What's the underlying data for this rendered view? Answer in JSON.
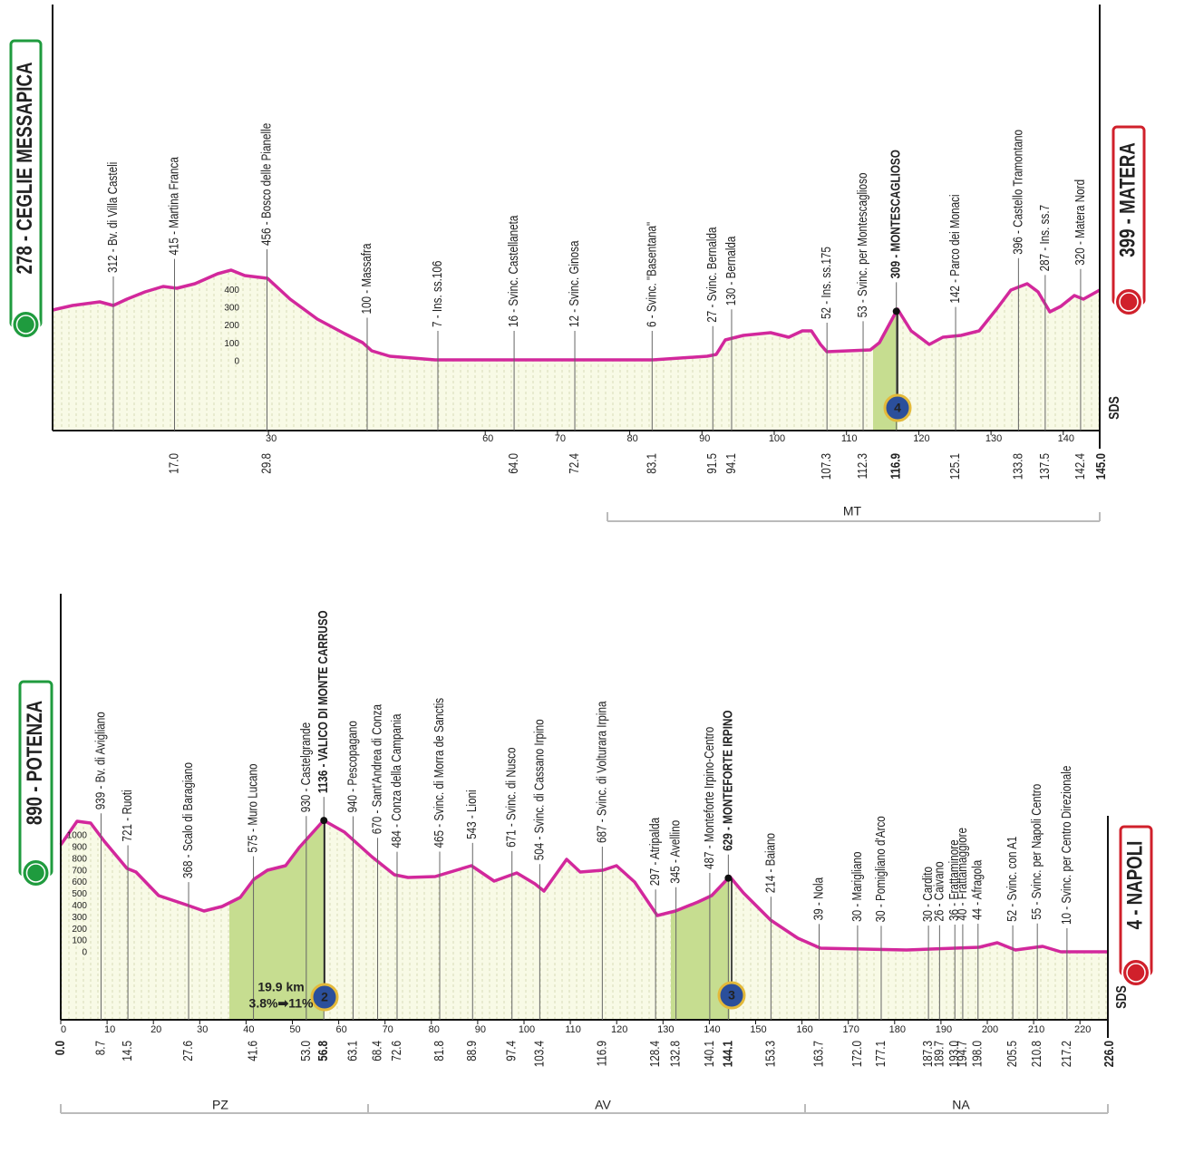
{
  "profiles": [
    {
      "start": "278 - CEGLIE MESSAPICA",
      "finish": "399 - MATERA",
      "finish_km": "145.0",
      "waypoints": [
        {
          "label": "312 - Bv. di Villa Casteli"
        },
        {
          "label": "415 - Martina Franca",
          "km": "17.0"
        },
        {
          "label": "456 - Bosco delle Pianelle",
          "km": "29.8"
        },
        {
          "label": "100 - Massafra"
        },
        {
          "label": "7 - Ins. ss.106"
        },
        {
          "label": "16 - Svinc. Castellaneta",
          "km": "64.0"
        },
        {
          "label": "12 - Svinc. Ginosa",
          "km": "72.4"
        },
        {
          "label": "6 - Svinc. \"Basentana\"",
          "km": "83.1"
        },
        {
          "label": "27 - Svinc. Bernalda",
          "km": "91.5"
        },
        {
          "label": "130 - Bernalda",
          "km": "94.1"
        },
        {
          "label": "52 - Ins. ss.175",
          "km": "107.3"
        },
        {
          "label": "53 - Svinc. per Montescaglioso",
          "km": "112.3"
        },
        {
          "label": "309 - MONTESCAGLIOSO",
          "km": "116.9",
          "summit": true
        },
        {
          "label": "142 - Parco dei Monaci",
          "km": "125.1"
        },
        {
          "label": "396 - Castello Tramontano",
          "km": "133.8"
        },
        {
          "label": "287 - Ins. ss.7",
          "km": "137.5"
        },
        {
          "label": "320 - Matera Nord",
          "km": "142.4"
        }
      ],
      "km_ticks": [
        30,
        60,
        70,
        80,
        90,
        100,
        110,
        120,
        130,
        140
      ],
      "alt_ticks": [
        400,
        300,
        200,
        100,
        0
      ],
      "provinces": [
        "MT"
      ],
      "climbs": [
        {
          "number": "4"
        }
      ],
      "watermark": "SDS"
    },
    {
      "start": "890 - POTENZA",
      "finish": "4 - NAPOLI",
      "start_km": "0.0",
      "finish_km": "226.0",
      "waypoints": [
        {
          "label": "939 - Bv. di Avigliano",
          "km": "8.7"
        },
        {
          "label": "721 - Ruoti",
          "km": "14.5"
        },
        {
          "label": "368 - Scalo di Baragiano",
          "km": "27.6"
        },
        {
          "label": "575 - Muro Lucano",
          "km": "41.6"
        },
        {
          "label": "930 - Castelgrande",
          "km": "53.0"
        },
        {
          "label": "1136 - VALICO DI MONTE CARRUSO",
          "km": "56.8",
          "summit": true
        },
        {
          "label": "940 - Pescopagano",
          "km": "63.1"
        },
        {
          "label": "670 - Sant'Andrea di Conza",
          "km": "68.4"
        },
        {
          "label": "484 - Conza della Campania",
          "km": "72.6"
        },
        {
          "label": "465 - Svinc. di Morra de Sanctis",
          "km": "81.8"
        },
        {
          "label": "543 - Lioni",
          "km": "88.9"
        },
        {
          "label": "671 - Svinc. di Nusco",
          "km": "97.4"
        },
        {
          "label": "504 - Svinc. di Cassano Irpino",
          "km": "103.4"
        },
        {
          "label": "687 - Svinc. di Volturara Irpina",
          "km": "116.9"
        },
        {
          "label": "297 - Atripalda",
          "km": "128.4"
        },
        {
          "label": "345 - Avellino",
          "km": "132.8"
        },
        {
          "label": "487 - Monteforte Irpino-Centro",
          "km": "140.1"
        },
        {
          "label": "629 - MONTEFORTE IRPINO",
          "km": "144.1",
          "summit": true
        },
        {
          "label": "214 - Baiano",
          "km": "153.3"
        },
        {
          "label": "39 - Nola",
          "km": "163.7"
        },
        {
          "label": "30 - Marigliano",
          "km": "172.0"
        },
        {
          "label": "30 - Pomigliano d'Arco",
          "km": "177.1"
        },
        {
          "label": "30 - Cardito",
          "km": "187.3"
        },
        {
          "label": "26 - Caivano",
          "km": "189.7"
        },
        {
          "label": "36 - Frattaminore",
          "km": "193.0"
        },
        {
          "label": "40 - Frattamaggiore",
          "km": "194.7"
        },
        {
          "label": "44 - Afragola",
          "km": "198.0"
        },
        {
          "label": "52 - Svinc. con A1",
          "km": "205.5"
        },
        {
          "label": "55 - Svinc. per Napoli Centro",
          "km": "210.8"
        },
        {
          "label": "10 - Svinc. per Centro Direzionale",
          "km": "217.2"
        }
      ],
      "km_ticks": [
        0,
        10,
        20,
        30,
        40,
        50,
        60,
        70,
        80,
        90,
        100,
        110,
        120,
        130,
        140,
        150,
        160,
        170,
        180,
        190,
        200,
        210,
        220
      ],
      "alt_ticks": [
        1000,
        900,
        800,
        700,
        600,
        500,
        400,
        300,
        200,
        100,
        0
      ],
      "provinces": [
        "PZ",
        "AV",
        "NA"
      ],
      "climbs": [
        {
          "number": "2",
          "info": [
            "19.9 km",
            "3.8%➡11%"
          ]
        },
        {
          "number": "3"
        }
      ],
      "watermark": "SDS"
    }
  ]
}
